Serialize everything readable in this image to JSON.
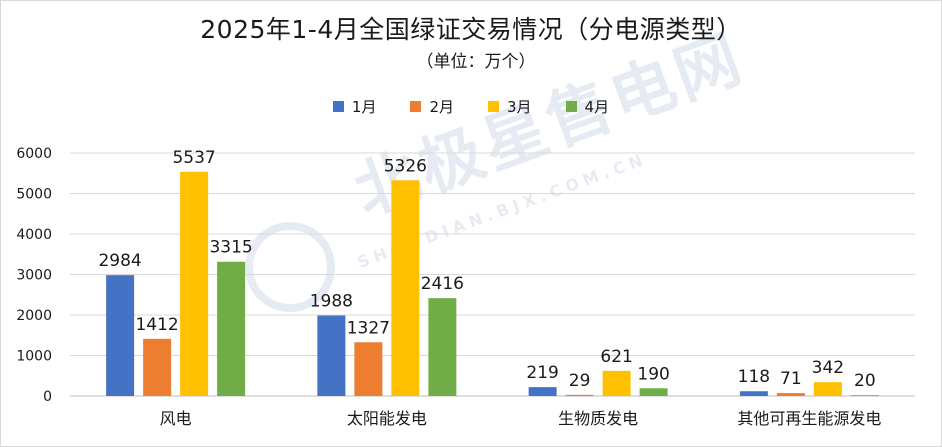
{
  "colors": {
    "jan": "#4472C4",
    "feb": "#ED7D31",
    "mar": "#FFC000",
    "apr": "#70AD47",
    "grid": "#d9d9d9",
    "text": "#1a1a1a"
  },
  "watermark": {
    "main": "北极星售电网",
    "sub": "SHOUDIAN.BJX.COM.CN"
  },
  "chart_data": {
    "type": "bar",
    "title": "2025年1-4月全国绿证交易情况（分电源类型）",
    "subtitle": "（单位：万个）",
    "categories": [
      "风电",
      "太阳能发电",
      "生物质发电",
      "其他可再生能源发电"
    ],
    "series": [
      {
        "name": "1月",
        "values": [
          2984,
          1988,
          219,
          118
        ]
      },
      {
        "name": "2月",
        "values": [
          1412,
          1327,
          29,
          71
        ]
      },
      {
        "name": "3月",
        "values": [
          5537,
          5326,
          621,
          342
        ]
      },
      {
        "name": "4月",
        "values": [
          3315,
          2416,
          190,
          20
        ]
      }
    ],
    "y_ticks": [
      "0",
      "1000",
      "2000",
      "3000",
      "4000",
      "5000",
      "6000"
    ],
    "ylim": [
      0,
      6000
    ],
    "grid": true,
    "legend_position": "top"
  }
}
